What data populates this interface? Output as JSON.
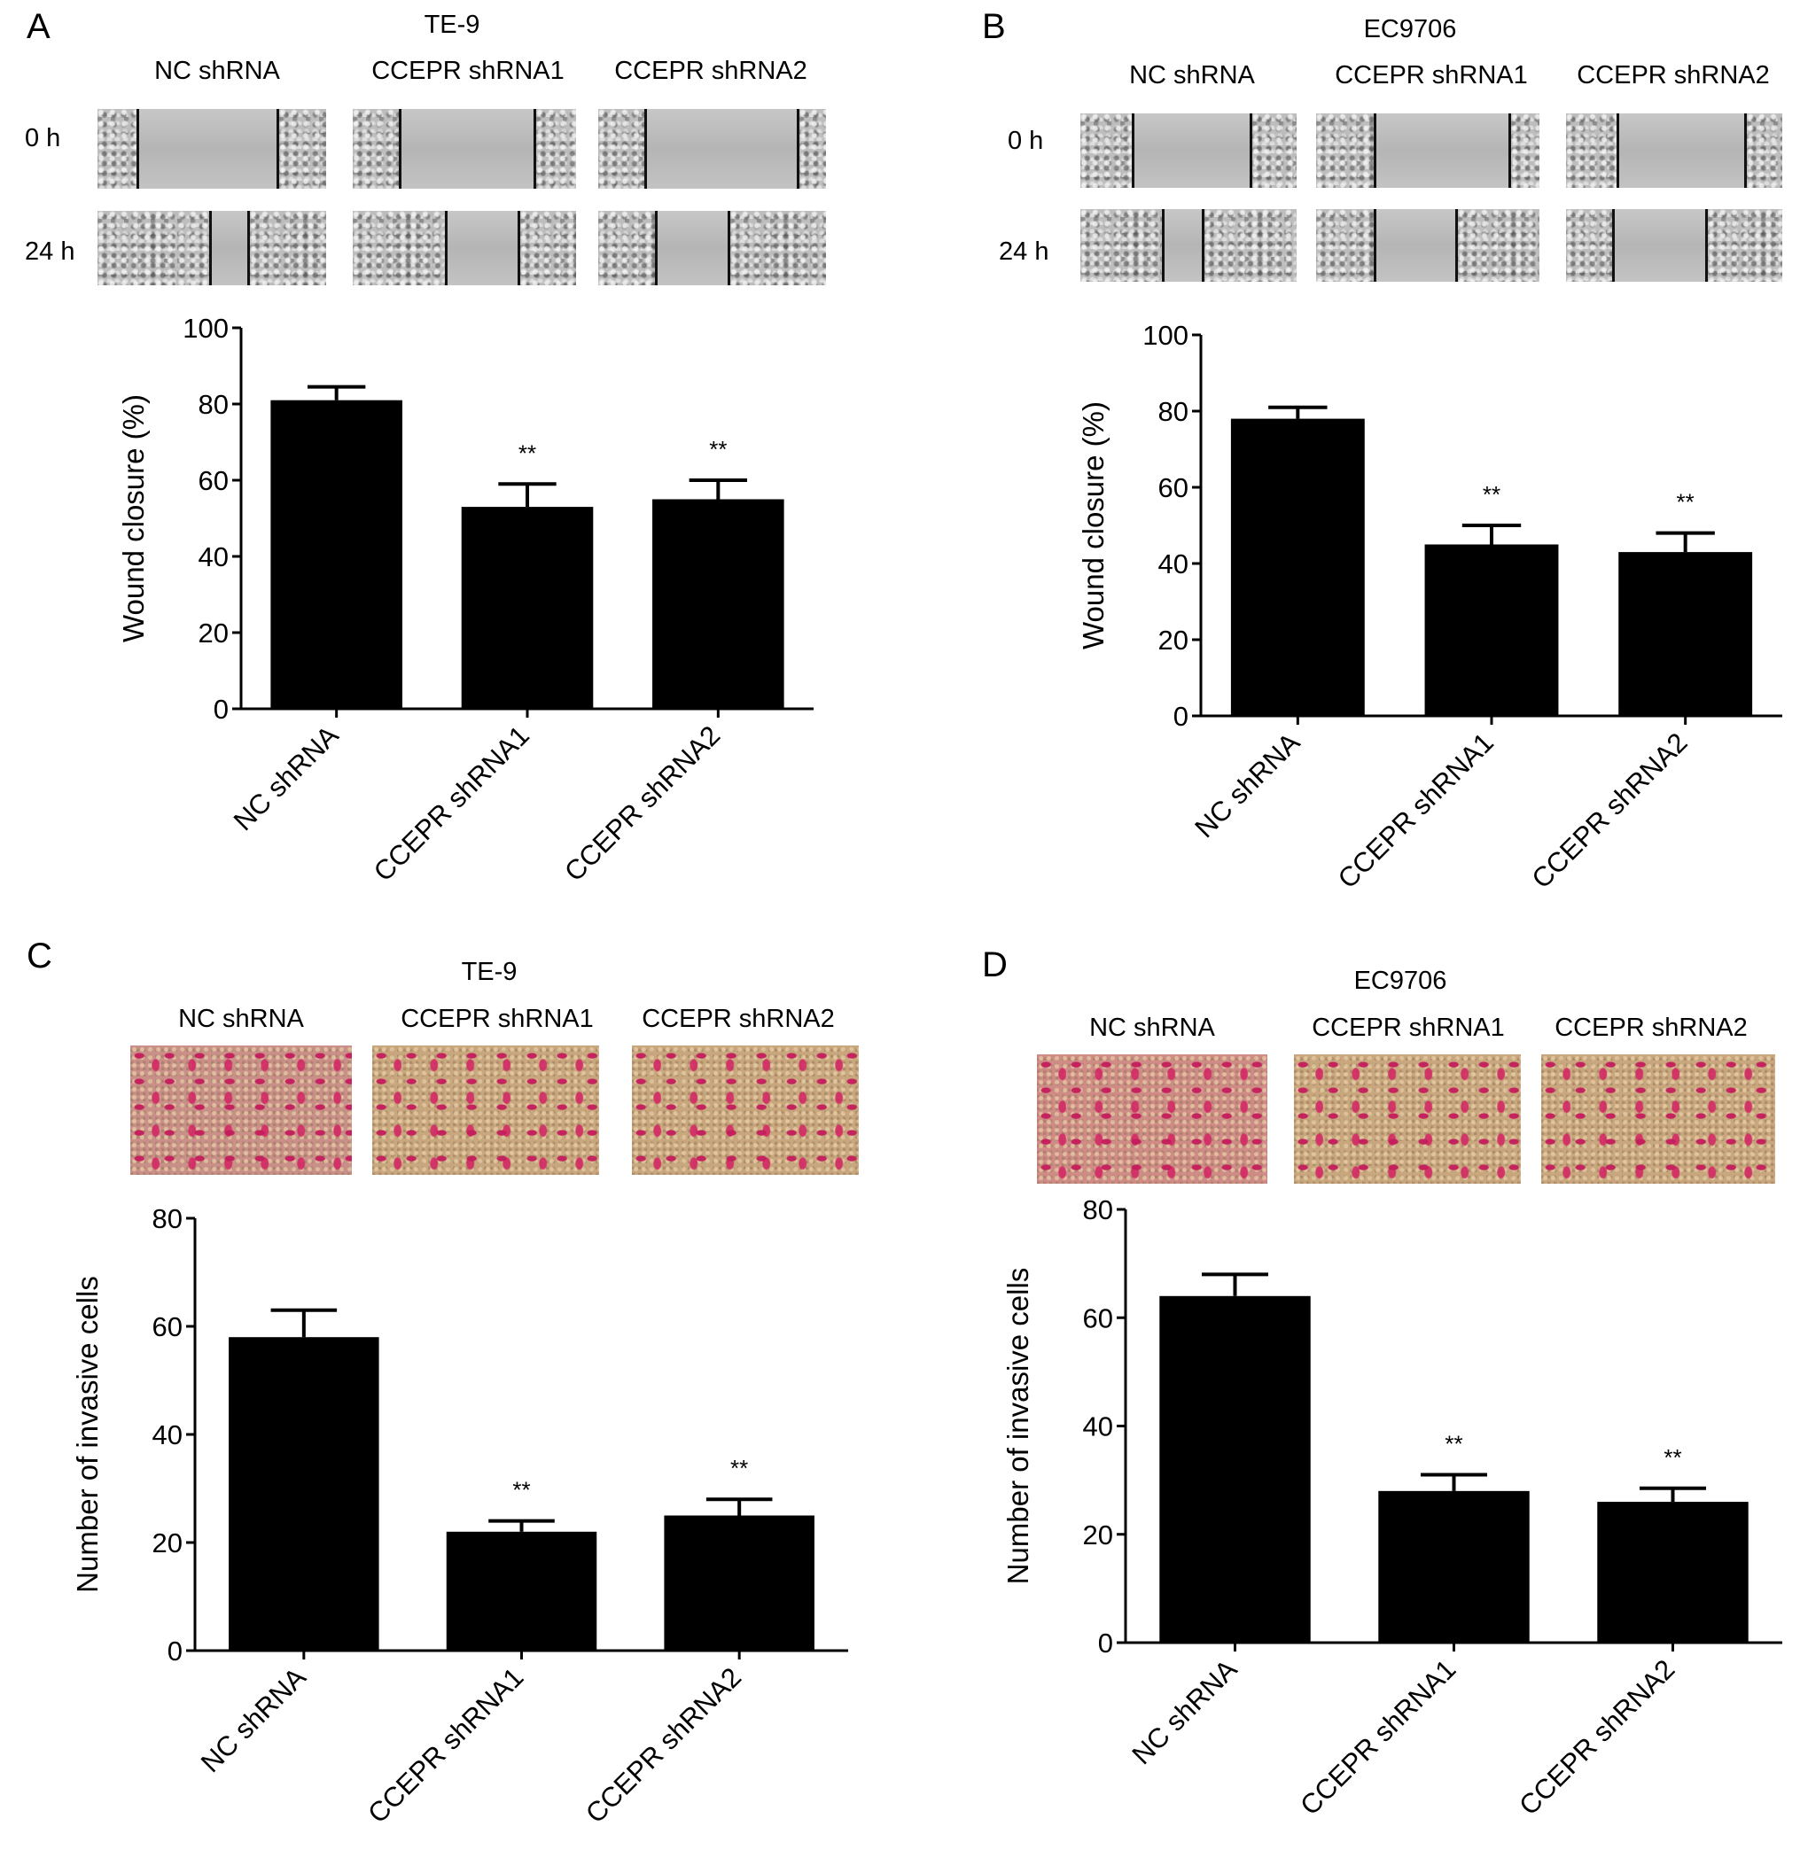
{
  "panels": [
    {
      "letter": "A",
      "cell_line": "TE-9",
      "groups": [
        "NC shRNA",
        "CCEPR shRNA1",
        "CCEPR shRNA2"
      ],
      "time_labels": [
        "0 h",
        "24 h"
      ],
      "image_type": "wound-healing micrographs"
    },
    {
      "letter": "B",
      "cell_line": "EC9706",
      "groups": [
        "NC shRNA",
        "CCEPR shRNA1",
        "CCEPR shRNA2"
      ],
      "time_labels": [
        "0 h",
        "24 h"
      ],
      "image_type": "wound-healing micrographs"
    },
    {
      "letter": "C",
      "cell_line": "TE-9",
      "groups": [
        "NC shRNA",
        "CCEPR shRNA1",
        "CCEPR shRNA2"
      ],
      "image_type": "transwell invasion micrographs"
    },
    {
      "letter": "D",
      "cell_line": "EC9706",
      "groups": [
        "NC shRNA",
        "CCEPR shRNA1",
        "CCEPR shRNA2"
      ],
      "image_type": "transwell invasion micrographs"
    }
  ],
  "chart_data": [
    {
      "panel": "A",
      "type": "bar",
      "categories": [
        "NC shRNA",
        "CCEPR shRNA1",
        "CCEPR shRNA2"
      ],
      "values": [
        81,
        53,
        55
      ],
      "errors": [
        3.5,
        6,
        5
      ],
      "significance": [
        "",
        "**",
        "**"
      ],
      "xlabel": "",
      "ylabel": "Wound closure (%)",
      "ylim": [
        0,
        100
      ],
      "yticks": [
        0,
        20,
        40,
        60,
        80,
        100
      ],
      "bar_color": "#000000",
      "grid": false
    },
    {
      "panel": "B",
      "type": "bar",
      "categories": [
        "NC shRNA",
        "CCEPR shRNA1",
        "CCEPR shRNA2"
      ],
      "values": [
        78,
        45,
        43
      ],
      "errors": [
        3,
        5,
        5
      ],
      "significance": [
        "",
        "**",
        "**"
      ],
      "xlabel": "",
      "ylabel": "Wound closure (%)",
      "ylim": [
        0,
        100
      ],
      "yticks": [
        0,
        20,
        40,
        60,
        80,
        100
      ],
      "bar_color": "#000000",
      "grid": false
    },
    {
      "panel": "C",
      "type": "bar",
      "categories": [
        "NC shRNA",
        "CCEPR shRNA1",
        "CCEPR shRNA2"
      ],
      "values": [
        58,
        22,
        25
      ],
      "errors": [
        5,
        2,
        3
      ],
      "significance": [
        "",
        "**",
        "**"
      ],
      "xlabel": "",
      "ylabel": "Number of invasive cells",
      "ylim": [
        0,
        80
      ],
      "yticks": [
        0,
        20,
        40,
        60,
        80
      ],
      "bar_color": "#000000",
      "grid": false
    },
    {
      "panel": "D",
      "type": "bar",
      "categories": [
        "NC shRNA",
        "CCEPR shRNA1",
        "CCEPR shRNA2"
      ],
      "values": [
        64,
        28,
        26
      ],
      "errors": [
        4,
        3,
        2.5
      ],
      "significance": [
        "",
        "**",
        "**"
      ],
      "xlabel": "",
      "ylabel": "Number of invasive cells",
      "ylim": [
        0,
        80
      ],
      "yticks": [
        0,
        20,
        40,
        60,
        80
      ],
      "bar_color": "#000000",
      "grid": false
    }
  ]
}
